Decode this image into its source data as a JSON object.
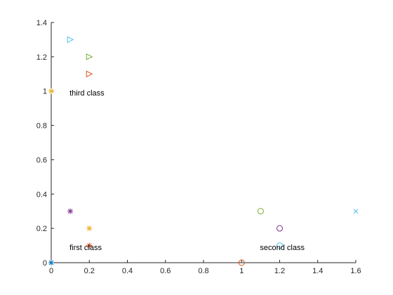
{
  "chart_data": {
    "type": "scatter",
    "title": "",
    "xlabel": "",
    "ylabel": "",
    "xlim": [
      0,
      1.6
    ],
    "ylim": [
      0,
      1.4
    ],
    "grid": false,
    "box": false,
    "xticks": [
      {
        "value": 0,
        "label": "0"
      },
      {
        "value": 0.2,
        "label": "0.2"
      },
      {
        "value": 0.4,
        "label": "0.4"
      },
      {
        "value": 0.6,
        "label": "0.6"
      },
      {
        "value": 0.8,
        "label": "0.8"
      },
      {
        "value": 1,
        "label": "1"
      },
      {
        "value": 1.2,
        "label": "1.2"
      },
      {
        "value": 1.4,
        "label": "1.4"
      },
      {
        "value": 1.6,
        "label": "1.6"
      }
    ],
    "yticks": [
      {
        "value": 0,
        "label": "0"
      },
      {
        "value": 0.2,
        "label": "0.2"
      },
      {
        "value": 0.4,
        "label": "0.4"
      },
      {
        "value": 0.6,
        "label": "0.6"
      },
      {
        "value": 0.8,
        "label": "0.8"
      },
      {
        "value": 1,
        "label": "1"
      },
      {
        "value": 1.2,
        "label": "1.2"
      },
      {
        "value": 1.4,
        "label": "1.4"
      }
    ],
    "points": [
      {
        "x": 0,
        "y": 0,
        "marker": "asterisk",
        "color": "#0072BD"
      },
      {
        "x": 0.2,
        "y": 0.1,
        "marker": "asterisk",
        "color": "#D95319"
      },
      {
        "x": 0.2,
        "y": 0.2,
        "marker": "asterisk",
        "color": "#EDB120"
      },
      {
        "x": 0.1,
        "y": 0.3,
        "marker": "asterisk",
        "color": "#7E2F8E"
      },
      {
        "x": 1.0,
        "y": 0.0,
        "marker": "circle",
        "color": "#D95319"
      },
      {
        "x": 1.1,
        "y": 0.3,
        "marker": "circle",
        "color": "#77AC30"
      },
      {
        "x": 1.2,
        "y": 0.2,
        "marker": "circle",
        "color": "#7E2F8E"
      },
      {
        "x": 1.2,
        "y": 0.1,
        "marker": "circle",
        "color": "#4DBEEE"
      },
      {
        "x": 1.6,
        "y": 0.3,
        "marker": "x",
        "color": "#4DBEEE"
      },
      {
        "x": 0,
        "y": 1.0,
        "marker": "asterisk",
        "color": "#EDB120"
      },
      {
        "x": 0.2,
        "y": 1.1,
        "marker": "triangle-right",
        "color": "#D95319"
      },
      {
        "x": 0.2,
        "y": 1.2,
        "marker": "triangle-right",
        "color": "#77AC30"
      },
      {
        "x": 0.1,
        "y": 1.3,
        "marker": "triangle-right",
        "color": "#4DBEEE"
      }
    ],
    "annotations": [
      {
        "text": "first class",
        "x": 0.1,
        "y": 0.09
      },
      {
        "text": "second class",
        "x": 1.1,
        "y": 0.09
      },
      {
        "text": "third class",
        "x": 0.1,
        "y": 0.99
      }
    ]
  }
}
